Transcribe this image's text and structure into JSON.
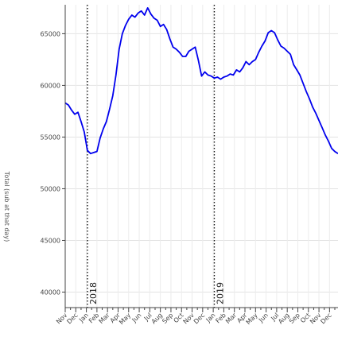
{
  "chart_data": {
    "type": "line",
    "ylabel": "Total (sub at that day)",
    "ylim": [
      38500,
      67800
    ],
    "yticks": [
      40000,
      45000,
      50000,
      55000,
      60000,
      65000
    ],
    "xlim": [
      0,
      25.8
    ],
    "xtick_labels": [
      "Nov",
      "Dec",
      "Jan",
      "Feb",
      "Mar",
      "Apr",
      "May",
      "Jun",
      "Jul",
      "Aug",
      "Sep",
      "Oct",
      "Nov",
      "Dec",
      "Jan",
      "Feb",
      "Mar",
      "Apr",
      "May",
      "Jun",
      "Jul",
      "Aug",
      "Sep",
      "Oct",
      "Nov",
      "Dec"
    ],
    "grid": true,
    "legend": "none",
    "line_color": "#0000ee",
    "vlines": [
      {
        "x": 2.1,
        "label": "2018"
      },
      {
        "x": 14.1,
        "label": "2019"
      }
    ],
    "series": [
      {
        "x": [
          0,
          0.3,
          0.6,
          0.9,
          1.2,
          1.5,
          1.8,
          2.1,
          2.4,
          2.7,
          3.0,
          3.3,
          3.6,
          3.9,
          4.2,
          4.5,
          4.8,
          5.1,
          5.4,
          5.7,
          6.0,
          6.3,
          6.6,
          6.9,
          7.2,
          7.5,
          7.8,
          8.1,
          8.4,
          8.7,
          9.0,
          9.3,
          9.6,
          9.9,
          10.2,
          10.5,
          10.8,
          11.1,
          11.4,
          11.7,
          12.0,
          12.3,
          12.6,
          12.9,
          13.2,
          13.5,
          13.8,
          14.1,
          14.4,
          14.7,
          15.0,
          15.3,
          15.6,
          15.9,
          16.2,
          16.5,
          16.8,
          17.1,
          17.4,
          17.7,
          18.0,
          18.3,
          18.6,
          18.9,
          19.2,
          19.5,
          19.8,
          20.1,
          20.4,
          20.7,
          21.0,
          21.3,
          21.6,
          21.9,
          22.2,
          22.5,
          22.8,
          23.1,
          23.4,
          23.7,
          24.0,
          24.3,
          24.6,
          24.9,
          25.2,
          25.5,
          25.8
        ],
        "values": [
          58300,
          58100,
          57600,
          57200,
          57400,
          56500,
          55500,
          53700,
          53400,
          53500,
          53600,
          54900,
          55800,
          56500,
          57700,
          59000,
          61000,
          63500,
          65000,
          65800,
          66400,
          66800,
          66600,
          67000,
          67200,
          66800,
          67500,
          66900,
          66500,
          66300,
          65700,
          65900,
          65400,
          64500,
          63700,
          63500,
          63200,
          62800,
          62800,
          63300,
          63500,
          63700,
          62400,
          60900,
          61300,
          61000,
          60900,
          60700,
          60800,
          60600,
          60800,
          60900,
          61100,
          61000,
          61500,
          61300,
          61700,
          62300,
          62000,
          62300,
          62500,
          63200,
          63800,
          64300,
          65100,
          65300,
          65100,
          64400,
          63800,
          63600,
          63300,
          63000,
          62000,
          61500,
          61000,
          60200,
          59400,
          58700,
          57900,
          57300,
          56600,
          55900,
          55200,
          54600,
          53900,
          53600,
          53400
        ]
      }
    ]
  }
}
